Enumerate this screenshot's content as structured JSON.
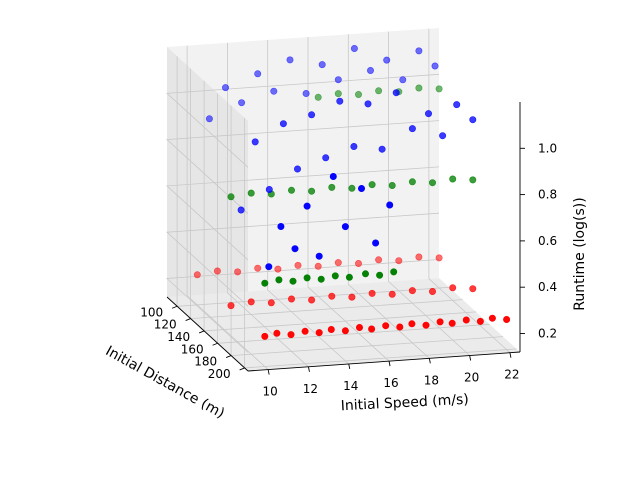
{
  "chart_data": {
    "type": "scatter",
    "projection": "3d",
    "title": "",
    "xlabel": "Initial Speed (m/s)",
    "ylabel": "Initial Distance (m)",
    "zlabel": "Runtime (log(s))",
    "x_ticks": [
      "10",
      "12",
      "14",
      "16",
      "18",
      "20",
      "22"
    ],
    "y_ticks": [
      "100",
      "120",
      "140",
      "160",
      "180",
      "200"
    ],
    "z_ticks": [
      "0.2",
      "0.4",
      "0.6",
      "0.8",
      "1.0"
    ],
    "xlim": [
      9,
      22.5
    ],
    "ylim": [
      85,
      205
    ],
    "zlim": [
      0.12,
      1.2
    ],
    "grid": true,
    "series": [
      {
        "color": "#ff0000",
        "points": [
          [
            10.0,
            200,
            0.25
          ],
          [
            10.6,
            200,
            0.26
          ],
          [
            11.3,
            200,
            0.25
          ],
          [
            12.0,
            200,
            0.26
          ],
          [
            12.7,
            200,
            0.25
          ],
          [
            13.3,
            200,
            0.26
          ],
          [
            14.0,
            200,
            0.25
          ],
          [
            14.7,
            200,
            0.26
          ],
          [
            15.3,
            200,
            0.25
          ],
          [
            16.0,
            200,
            0.26
          ],
          [
            16.7,
            200,
            0.25
          ],
          [
            17.3,
            200,
            0.26
          ],
          [
            18.0,
            200,
            0.25
          ],
          [
            18.7,
            200,
            0.26
          ],
          [
            19.3,
            200,
            0.25
          ],
          [
            20.0,
            200,
            0.26
          ],
          [
            20.7,
            200,
            0.25
          ],
          [
            21.3,
            200,
            0.26
          ],
          [
            22.0,
            200,
            0.25
          ],
          [
            10.0,
            150,
            0.25
          ],
          [
            11.0,
            150,
            0.26
          ],
          [
            12.0,
            150,
            0.25
          ],
          [
            13.0,
            150,
            0.26
          ],
          [
            14.0,
            150,
            0.25
          ],
          [
            15.0,
            150,
            0.26
          ],
          [
            16.0,
            150,
            0.25
          ],
          [
            17.0,
            150,
            0.26
          ],
          [
            18.0,
            150,
            0.25
          ],
          [
            19.0,
            150,
            0.26
          ],
          [
            20.0,
            150,
            0.25
          ],
          [
            21.0,
            150,
            0.26
          ],
          [
            22.0,
            150,
            0.25
          ],
          [
            10.0,
            100,
            0.25
          ],
          [
            11.0,
            100,
            0.26
          ],
          [
            12.0,
            100,
            0.25
          ],
          [
            13.0,
            100,
            0.26
          ],
          [
            14.0,
            100,
            0.25
          ],
          [
            15.0,
            100,
            0.26
          ],
          [
            16.0,
            100,
            0.25
          ],
          [
            17.0,
            100,
            0.26
          ],
          [
            18.0,
            100,
            0.25
          ],
          [
            19.0,
            100,
            0.26
          ],
          [
            20.0,
            100,
            0.25
          ],
          [
            21.0,
            100,
            0.26
          ],
          [
            22.0,
            100,
            0.25
          ]
        ]
      },
      {
        "color": "#008000",
        "points": [
          [
            10.0,
            200,
            0.48
          ],
          [
            10.7,
            200,
            0.49
          ],
          [
            11.4,
            200,
            0.48
          ],
          [
            12.1,
            200,
            0.49
          ],
          [
            12.8,
            200,
            0.48
          ],
          [
            13.5,
            200,
            0.49
          ],
          [
            14.2,
            200,
            0.48
          ],
          [
            15.0,
            200,
            0.49
          ],
          [
            15.7,
            200,
            0.48
          ],
          [
            16.4,
            200,
            0.49
          ],
          [
            10.0,
            150,
            0.72
          ],
          [
            11.0,
            150,
            0.73
          ],
          [
            12.0,
            150,
            0.72
          ],
          [
            13.0,
            150,
            0.73
          ],
          [
            14.0,
            150,
            0.72
          ],
          [
            15.0,
            150,
            0.73
          ],
          [
            16.0,
            150,
            0.72
          ],
          [
            17.0,
            150,
            0.73
          ],
          [
            18.0,
            150,
            0.72
          ],
          [
            19.0,
            150,
            0.73
          ],
          [
            20.0,
            150,
            0.72
          ],
          [
            21.0,
            150,
            0.73
          ],
          [
            22.0,
            150,
            0.72
          ],
          [
            16.0,
            100,
            0.98
          ],
          [
            17.0,
            100,
            0.99
          ],
          [
            18.0,
            100,
            0.98
          ],
          [
            19.0,
            100,
            0.99
          ],
          [
            20.0,
            100,
            0.98
          ],
          [
            21.0,
            100,
            0.99
          ],
          [
            22.0,
            100,
            0.98
          ]
        ]
      },
      {
        "color": "#0000ff",
        "points": [
          [
            10.2,
            200,
            0.55
          ],
          [
            10.8,
            200,
            0.72
          ],
          [
            11.5,
            200,
            0.62
          ],
          [
            12.1,
            200,
            0.8
          ],
          [
            12.7,
            200,
            0.58
          ],
          [
            13.4,
            200,
            0.92
          ],
          [
            14.0,
            200,
            0.7
          ],
          [
            14.8,
            200,
            0.86
          ],
          [
            15.5,
            200,
            0.62
          ],
          [
            16.2,
            200,
            0.78
          ],
          [
            10.5,
            150,
            0.66
          ],
          [
            11.2,
            150,
            0.95
          ],
          [
            11.9,
            150,
            0.74
          ],
          [
            12.6,
            150,
            1.02
          ],
          [
            13.3,
            150,
            0.82
          ],
          [
            14.0,
            150,
            1.05
          ],
          [
            14.7,
            150,
            0.86
          ],
          [
            15.4,
            150,
            1.1
          ],
          [
            16.1,
            150,
            0.9
          ],
          [
            16.8,
            150,
            1.08
          ],
          [
            17.5,
            150,
            0.88
          ],
          [
            18.2,
            150,
            1.12
          ],
          [
            19.0,
            150,
            0.96
          ],
          [
            19.8,
            150,
            1.02
          ],
          [
            20.5,
            150,
            0.92
          ],
          [
            21.2,
            150,
            1.05
          ],
          [
            22.0,
            150,
            0.98
          ],
          [
            10.6,
            100,
            0.92
          ],
          [
            11.4,
            100,
            1.05
          ],
          [
            12.2,
            100,
            0.98
          ],
          [
            13.0,
            100,
            1.1
          ],
          [
            13.8,
            100,
            1.02
          ],
          [
            14.6,
            100,
            1.15
          ],
          [
            15.4,
            100,
            1.0
          ],
          [
            16.2,
            100,
            1.12
          ],
          [
            17.0,
            100,
            1.05
          ],
          [
            17.8,
            100,
            1.18
          ],
          [
            18.6,
            100,
            1.08
          ],
          [
            19.4,
            100,
            1.12
          ],
          [
            20.2,
            100,
            1.03
          ],
          [
            21.0,
            100,
            1.15
          ],
          [
            21.8,
            100,
            1.08
          ]
        ]
      }
    ]
  }
}
